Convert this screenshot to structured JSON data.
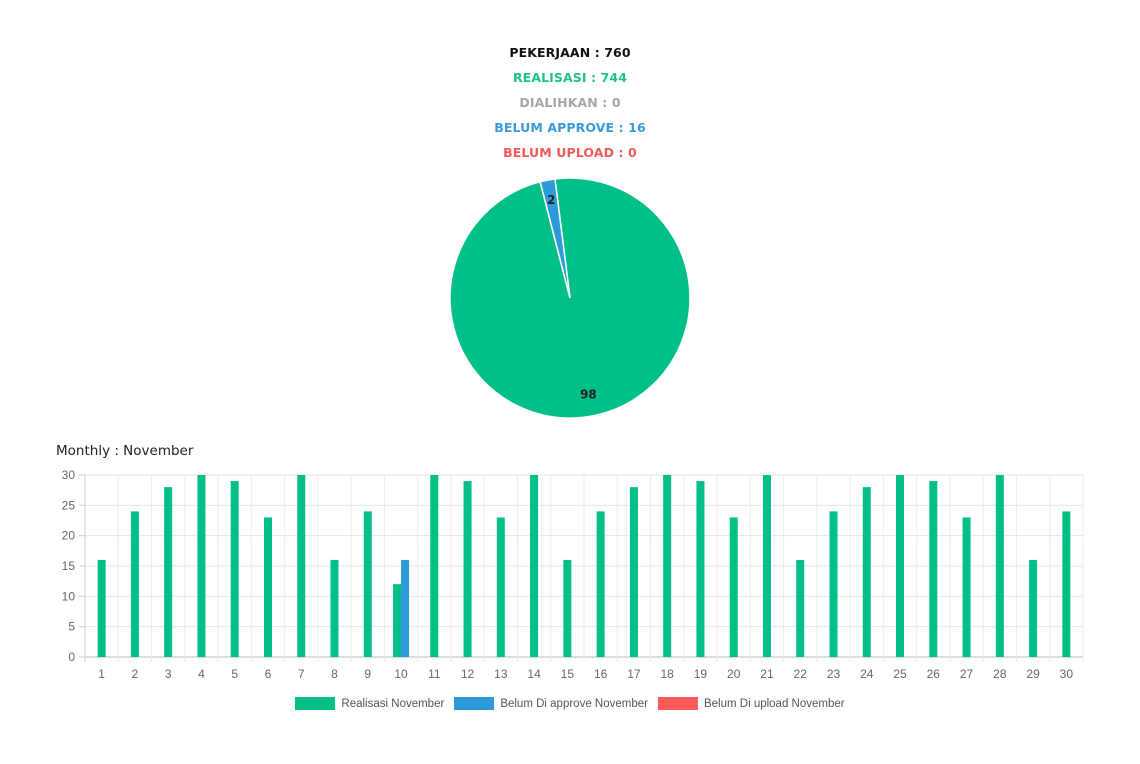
{
  "summary": {
    "pekerjaan": "PEKERJAAN : 760",
    "realisasi": "REALISASI : 744",
    "dialihkan": "DIALIHKAN : 0",
    "belum_approve": "BELUM APPROVE : 16",
    "belum_upload": "BELUM UPLOAD : 0"
  },
  "colors": {
    "realisasi": "#00bf87",
    "belum_approve": "#2d9ad9",
    "belum_upload": "#ff5b5b",
    "dialihkan": "#a6a6a6"
  },
  "monthly_title": "Monthly : November",
  "chart_data": [
    {
      "type": "pie",
      "slices": [
        {
          "label": "Realisasi",
          "value": 98,
          "color": "#00bf87"
        },
        {
          "label": "Belum approve",
          "value": 2,
          "color": "#2d9ad9"
        }
      ],
      "data_labels": [
        "98",
        "2"
      ]
    },
    {
      "type": "bar",
      "categories": [
        "1",
        "2",
        "3",
        "4",
        "5",
        "6",
        "7",
        "8",
        "9",
        "10",
        "11",
        "12",
        "13",
        "14",
        "15",
        "16",
        "17",
        "18",
        "19",
        "20",
        "21",
        "22",
        "23",
        "24",
        "25",
        "26",
        "27",
        "28",
        "29",
        "30"
      ],
      "series": [
        {
          "name": "Realisasi November",
          "color": "#00bf87",
          "values": [
            16,
            24,
            28,
            30,
            29,
            23,
            30,
            16,
            24,
            12,
            30,
            29,
            23,
            30,
            16,
            24,
            28,
            30,
            29,
            23,
            30,
            16,
            24,
            28,
            30,
            29,
            23,
            30,
            16,
            24
          ]
        },
        {
          "name": "Belum Di approve November",
          "color": "#2d9ad9",
          "values": [
            0,
            0,
            0,
            0,
            0,
            0,
            0,
            0,
            0,
            16,
            0,
            0,
            0,
            0,
            0,
            0,
            0,
            0,
            0,
            0,
            0,
            0,
            0,
            0,
            0,
            0,
            0,
            0,
            0,
            0
          ]
        },
        {
          "name": "Belum Di upload November",
          "color": "#ff5b5b",
          "values": [
            0,
            0,
            0,
            0,
            0,
            0,
            0,
            0,
            0,
            0,
            0,
            0,
            0,
            0,
            0,
            0,
            0,
            0,
            0,
            0,
            0,
            0,
            0,
            0,
            0,
            0,
            0,
            0,
            0,
            0
          ]
        }
      ],
      "yticks": [
        0,
        5,
        10,
        15,
        20,
        25,
        30
      ],
      "ylim": [
        0,
        30
      ],
      "grid": true,
      "legend_position": "bottom"
    }
  ]
}
